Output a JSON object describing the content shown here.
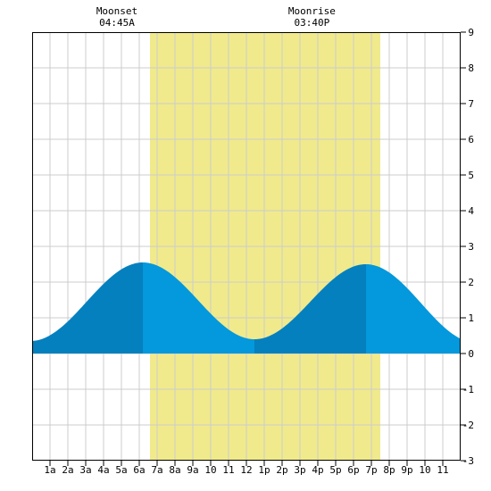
{
  "chart_data": {
    "type": "area",
    "title": "",
    "xlabel": "",
    "ylabel": "",
    "x_range_hours": [
      0,
      24
    ],
    "ylim": [
      -3,
      9
    ],
    "y_ticks": [
      -3,
      -2,
      -1,
      0,
      1,
      2,
      3,
      4,
      5,
      6,
      7,
      8,
      9
    ],
    "x_tick_labels": [
      "1a",
      "2a",
      "3a",
      "4a",
      "5a",
      "6a",
      "7a",
      "8a",
      "9a",
      "10",
      "11",
      "12",
      "1p",
      "2p",
      "3p",
      "4p",
      "5p",
      "6p",
      "7p",
      "8p",
      "9p",
      "10",
      "11"
    ],
    "grid": true,
    "daylight": {
      "start_hour": 6.6,
      "end_hour": 19.5,
      "color": "#f0ea8c"
    },
    "moon_events": [
      {
        "name": "Moonset",
        "time": "04:45A",
        "hour": 4.75
      },
      {
        "name": "Moonrise",
        "time": "03:40P",
        "hour": 15.67
      }
    ],
    "tide_extremes": [
      {
        "type": "low",
        "hour": -0.1,
        "height": 0.35
      },
      {
        "type": "high",
        "hour": 6.2,
        "height": 2.55
      },
      {
        "type": "low",
        "hour": 12.45,
        "height": 0.4
      },
      {
        "type": "high",
        "hour": 18.7,
        "height": 2.5
      },
      {
        "type": "low",
        "hour": 24.9,
        "height": 0.3
      }
    ],
    "colors": {
      "tide_dark": "#0480bf",
      "tide_light": "#0498dc",
      "grid": "#cccccc",
      "background": "#ffffff"
    }
  }
}
